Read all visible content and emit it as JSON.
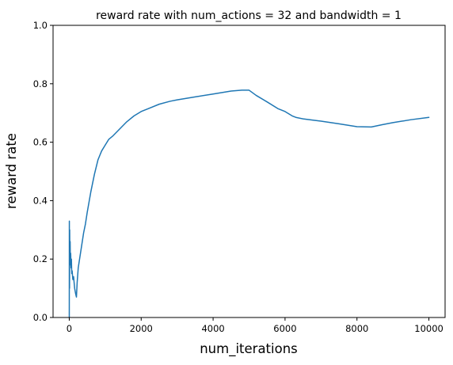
{
  "chart_data": {
    "type": "line",
    "title": "reward rate with num_actions = 32 and bandwidth = 1",
    "xlabel": "num_iterations",
    "ylabel": "reward rate",
    "xlim": [
      -450,
      10450
    ],
    "ylim": [
      0,
      1.0
    ],
    "xticks": [
      0,
      2000,
      4000,
      6000,
      8000,
      10000
    ],
    "yticks": [
      0.0,
      0.2,
      0.4,
      0.6,
      0.8,
      1.0
    ],
    "xtick_labels": [
      "0",
      "2000",
      "4000",
      "6000",
      "8000",
      "10000"
    ],
    "ytick_labels": [
      "0.0",
      "0.2",
      "0.4",
      "0.6",
      "0.8",
      "1.0"
    ],
    "grid": false,
    "legend": "none",
    "series": [
      {
        "color": "#1f77b4",
        "x": [
          1,
          3,
          5,
          8,
          12,
          16,
          20,
          25,
          30,
          40,
          50,
          60,
          70,
          80,
          100,
          120,
          150,
          180,
          200,
          220,
          250,
          300,
          350,
          400,
          450,
          500,
          600,
          700,
          800,
          900,
          1000,
          1100,
          1200,
          1400,
          1600,
          1800,
          2000,
          2200,
          2500,
          2800,
          3000,
          3500,
          4000,
          4500,
          4800,
          5000,
          5200,
          5500,
          5800,
          6000,
          6200,
          6300,
          6500,
          6800,
          7000,
          7500,
          8000,
          8400,
          8700,
          9000,
          9500,
          10000
        ],
        "y": [
          0.0,
          0.33,
          0.2,
          0.1,
          0.3,
          0.22,
          0.18,
          0.26,
          0.2,
          0.22,
          0.17,
          0.2,
          0.15,
          0.16,
          0.13,
          0.14,
          0.1,
          0.08,
          0.07,
          0.12,
          0.17,
          0.21,
          0.25,
          0.29,
          0.32,
          0.36,
          0.43,
          0.49,
          0.54,
          0.57,
          0.59,
          0.61,
          0.62,
          0.645,
          0.67,
          0.69,
          0.705,
          0.715,
          0.73,
          0.74,
          0.745,
          0.755,
          0.765,
          0.775,
          0.778,
          0.778,
          0.76,
          0.738,
          0.715,
          0.705,
          0.69,
          0.685,
          0.68,
          0.675,
          0.672,
          0.663,
          0.653,
          0.652,
          0.66,
          0.667,
          0.677,
          0.685
        ]
      }
    ]
  }
}
